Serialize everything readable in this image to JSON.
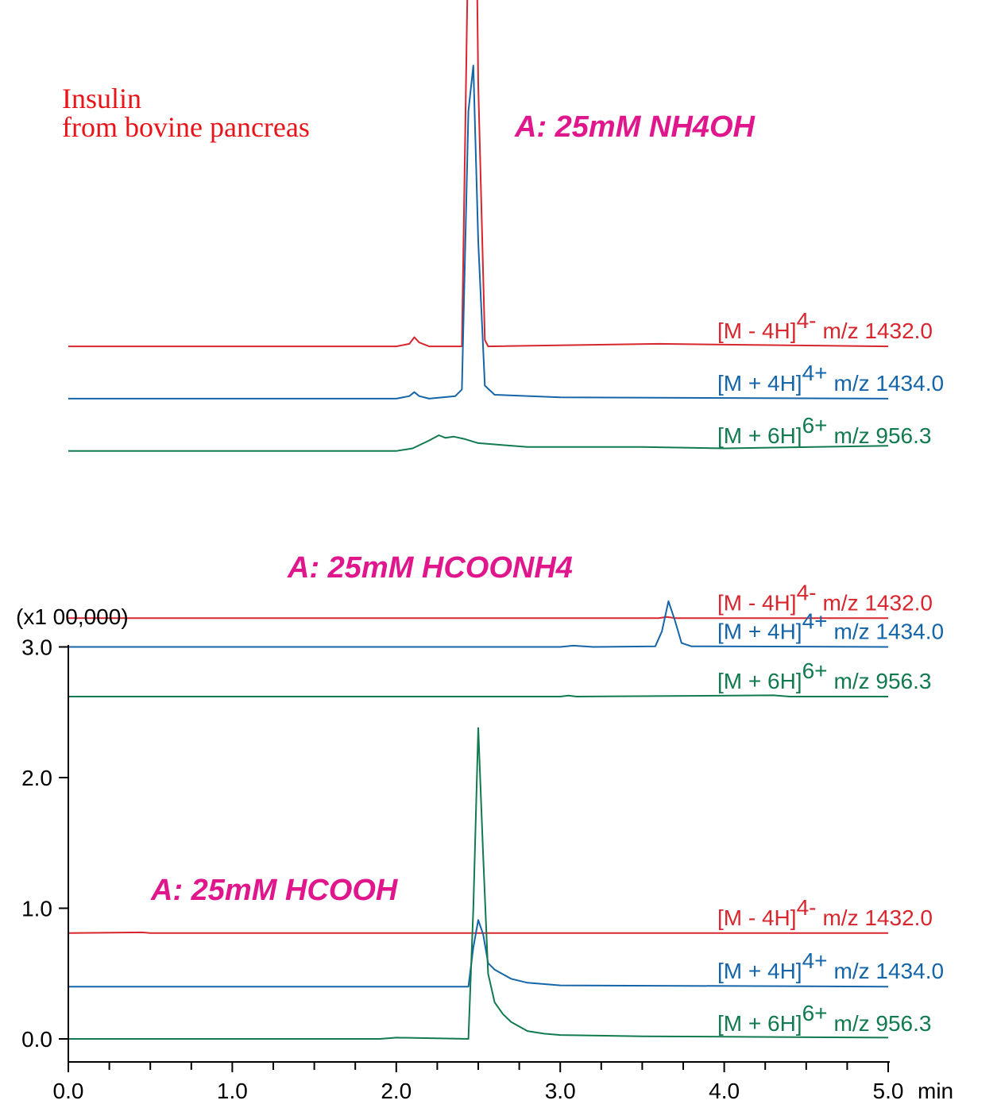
{
  "chart_data": {
    "type": "line",
    "sample_title": [
      "Insulin",
      "from bovine pancreas"
    ],
    "multiplier_label": "(x1 00,000)",
    "x_unit": "min",
    "xlim": [
      0.0,
      5.0
    ],
    "ylim": [
      0.0,
      3.0
    ],
    "x_ticks": [
      "0.0",
      "1.0",
      "2.0",
      "3.0",
      "4.0",
      "5.0"
    ],
    "y_ticks": [
      "0.0",
      "1.0",
      "2.0",
      "3.0"
    ],
    "colors": {
      "neg4": "#d7262e",
      "pos4": "#1565a8",
      "pos6": "#117a4e",
      "condition": "#e0168c",
      "sample": "#e8141a"
    },
    "panels": [
      {
        "condition": "A: 25mM NH4OH",
        "traces": [
          {
            "ion": "[M - 4H]",
            "charge": "4-",
            "mz": "m/z 1432.0",
            "color": "neg4",
            "baseline": 5.3,
            "points": [
              [
                0.0,
                0
              ],
              [
                2.0,
                0
              ],
              [
                2.08,
                0.02
              ],
              [
                2.11,
                0.07
              ],
              [
                2.14,
                0.03
              ],
              [
                2.2,
                0
              ],
              [
                2.4,
                0
              ],
              [
                2.44,
                3.2
              ],
              [
                2.47,
                5.3
              ],
              [
                2.5,
                2.0
              ],
              [
                2.54,
                0.05
              ],
              [
                2.56,
                0
              ],
              [
                3.6,
                0.02
              ],
              [
                5.0,
                0
              ]
            ]
          },
          {
            "ion": "[M + 4H]",
            "charge": "4+",
            "mz": "m/z 1434.0",
            "color": "pos4",
            "baseline": 4.9,
            "points": [
              [
                0.0,
                0
              ],
              [
                2.0,
                0
              ],
              [
                2.08,
                0.02
              ],
              [
                2.11,
                0.05
              ],
              [
                2.14,
                0.02
              ],
              [
                2.2,
                0
              ],
              [
                2.36,
                0.02
              ],
              [
                2.4,
                0.07
              ],
              [
                2.44,
                2.2
              ],
              [
                2.47,
                2.55
              ],
              [
                2.5,
                1.2
              ],
              [
                2.54,
                0.1
              ],
              [
                2.6,
                0.03
              ],
              [
                3.0,
                0.01
              ],
              [
                5.0,
                0
              ]
            ]
          },
          {
            "ion": "[M + 6H]",
            "charge": "6+",
            "mz": "m/z 956.3",
            "color": "pos6",
            "baseline": 4.5,
            "points": [
              [
                0.0,
                0
              ],
              [
                2.0,
                0
              ],
              [
                2.1,
                0.02
              ],
              [
                2.2,
                0.08
              ],
              [
                2.26,
                0.12
              ],
              [
                2.3,
                0.1
              ],
              [
                2.35,
                0.11
              ],
              [
                2.42,
                0.09
              ],
              [
                2.5,
                0.06
              ],
              [
                2.6,
                0.05
              ],
              [
                2.8,
                0.03
              ],
              [
                3.5,
                0.03
              ],
              [
                4.0,
                0.02
              ],
              [
                5.0,
                0.04
              ]
            ]
          }
        ]
      },
      {
        "condition": "A: 25mM HCOONH4",
        "traces": [
          {
            "ion": "[M - 4H]",
            "charge": "4-",
            "mz": "m/z 1432.0",
            "color": "neg4",
            "baseline": 3.22,
            "points": [
              [
                0.0,
                0
              ],
              [
                3.6,
                0
              ],
              [
                3.65,
                0.01
              ],
              [
                3.7,
                0
              ],
              [
                5.0,
                0
              ]
            ]
          },
          {
            "ion": "[M + 4H]",
            "charge": "4+",
            "mz": "m/z 1434.0",
            "color": "pos4",
            "baseline": 3.0,
            "points": [
              [
                0.0,
                0
              ],
              [
                3.0,
                0
              ],
              [
                3.08,
                0.01
              ],
              [
                3.2,
                0
              ],
              [
                3.58,
                0.005
              ],
              [
                3.62,
                0.12
              ],
              [
                3.66,
                0.35
              ],
              [
                3.7,
                0.2
              ],
              [
                3.74,
                0.03
              ],
              [
                3.8,
                0.005
              ],
              [
                5.0,
                0
              ]
            ]
          },
          {
            "ion": "[M + 6H]",
            "charge": "6+",
            "mz": "m/z 956.3",
            "color": "pos6",
            "baseline": 2.62,
            "points": [
              [
                0.0,
                0
              ],
              [
                3.0,
                0
              ],
              [
                3.05,
                0.008
              ],
              [
                3.1,
                0
              ],
              [
                4.3,
                0.01
              ],
              [
                4.4,
                0
              ],
              [
                5.0,
                0
              ]
            ]
          }
        ]
      },
      {
        "condition": "A: 25mM HCOOH",
        "traces": [
          {
            "ion": "[M - 4H]",
            "charge": "4-",
            "mz": "m/z 1432.0",
            "color": "neg4",
            "baseline": 0.81,
            "points": [
              [
                0.0,
                0
              ],
              [
                0.45,
                0.005
              ],
              [
                0.5,
                0
              ],
              [
                5.0,
                0
              ]
            ]
          },
          {
            "ion": "[M + 4H]",
            "charge": "4+",
            "mz": "m/z 1434.0",
            "color": "pos4",
            "baseline": 0.4,
            "points": [
              [
                0.0,
                0
              ],
              [
                2.44,
                0
              ],
              [
                2.47,
                0.3
              ],
              [
                2.5,
                0.51
              ],
              [
                2.53,
                0.4
              ],
              [
                2.56,
                0.18
              ],
              [
                2.6,
                0.13
              ],
              [
                2.7,
                0.06
              ],
              [
                2.8,
                0.03
              ],
              [
                3.0,
                0.01
              ],
              [
                5.0,
                0
              ]
            ]
          },
          {
            "ion": "[M + 6H]",
            "charge": "6+",
            "mz": "m/z 956.3",
            "color": "pos6",
            "baseline": 0.0,
            "points": [
              [
                0.0,
                0
              ],
              [
                1.9,
                0
              ],
              [
                2.0,
                0.01
              ],
              [
                2.44,
                0
              ],
              [
                2.47,
                1.0
              ],
              [
                2.5,
                2.38
              ],
              [
                2.53,
                1.4
              ],
              [
                2.56,
                0.5
              ],
              [
                2.6,
                0.28
              ],
              [
                2.65,
                0.19
              ],
              [
                2.7,
                0.13
              ],
              [
                2.8,
                0.06
              ],
              [
                2.9,
                0.04
              ],
              [
                3.0,
                0.03
              ],
              [
                3.5,
                0.02
              ],
              [
                5.0,
                0.01
              ]
            ]
          }
        ]
      }
    ]
  }
}
